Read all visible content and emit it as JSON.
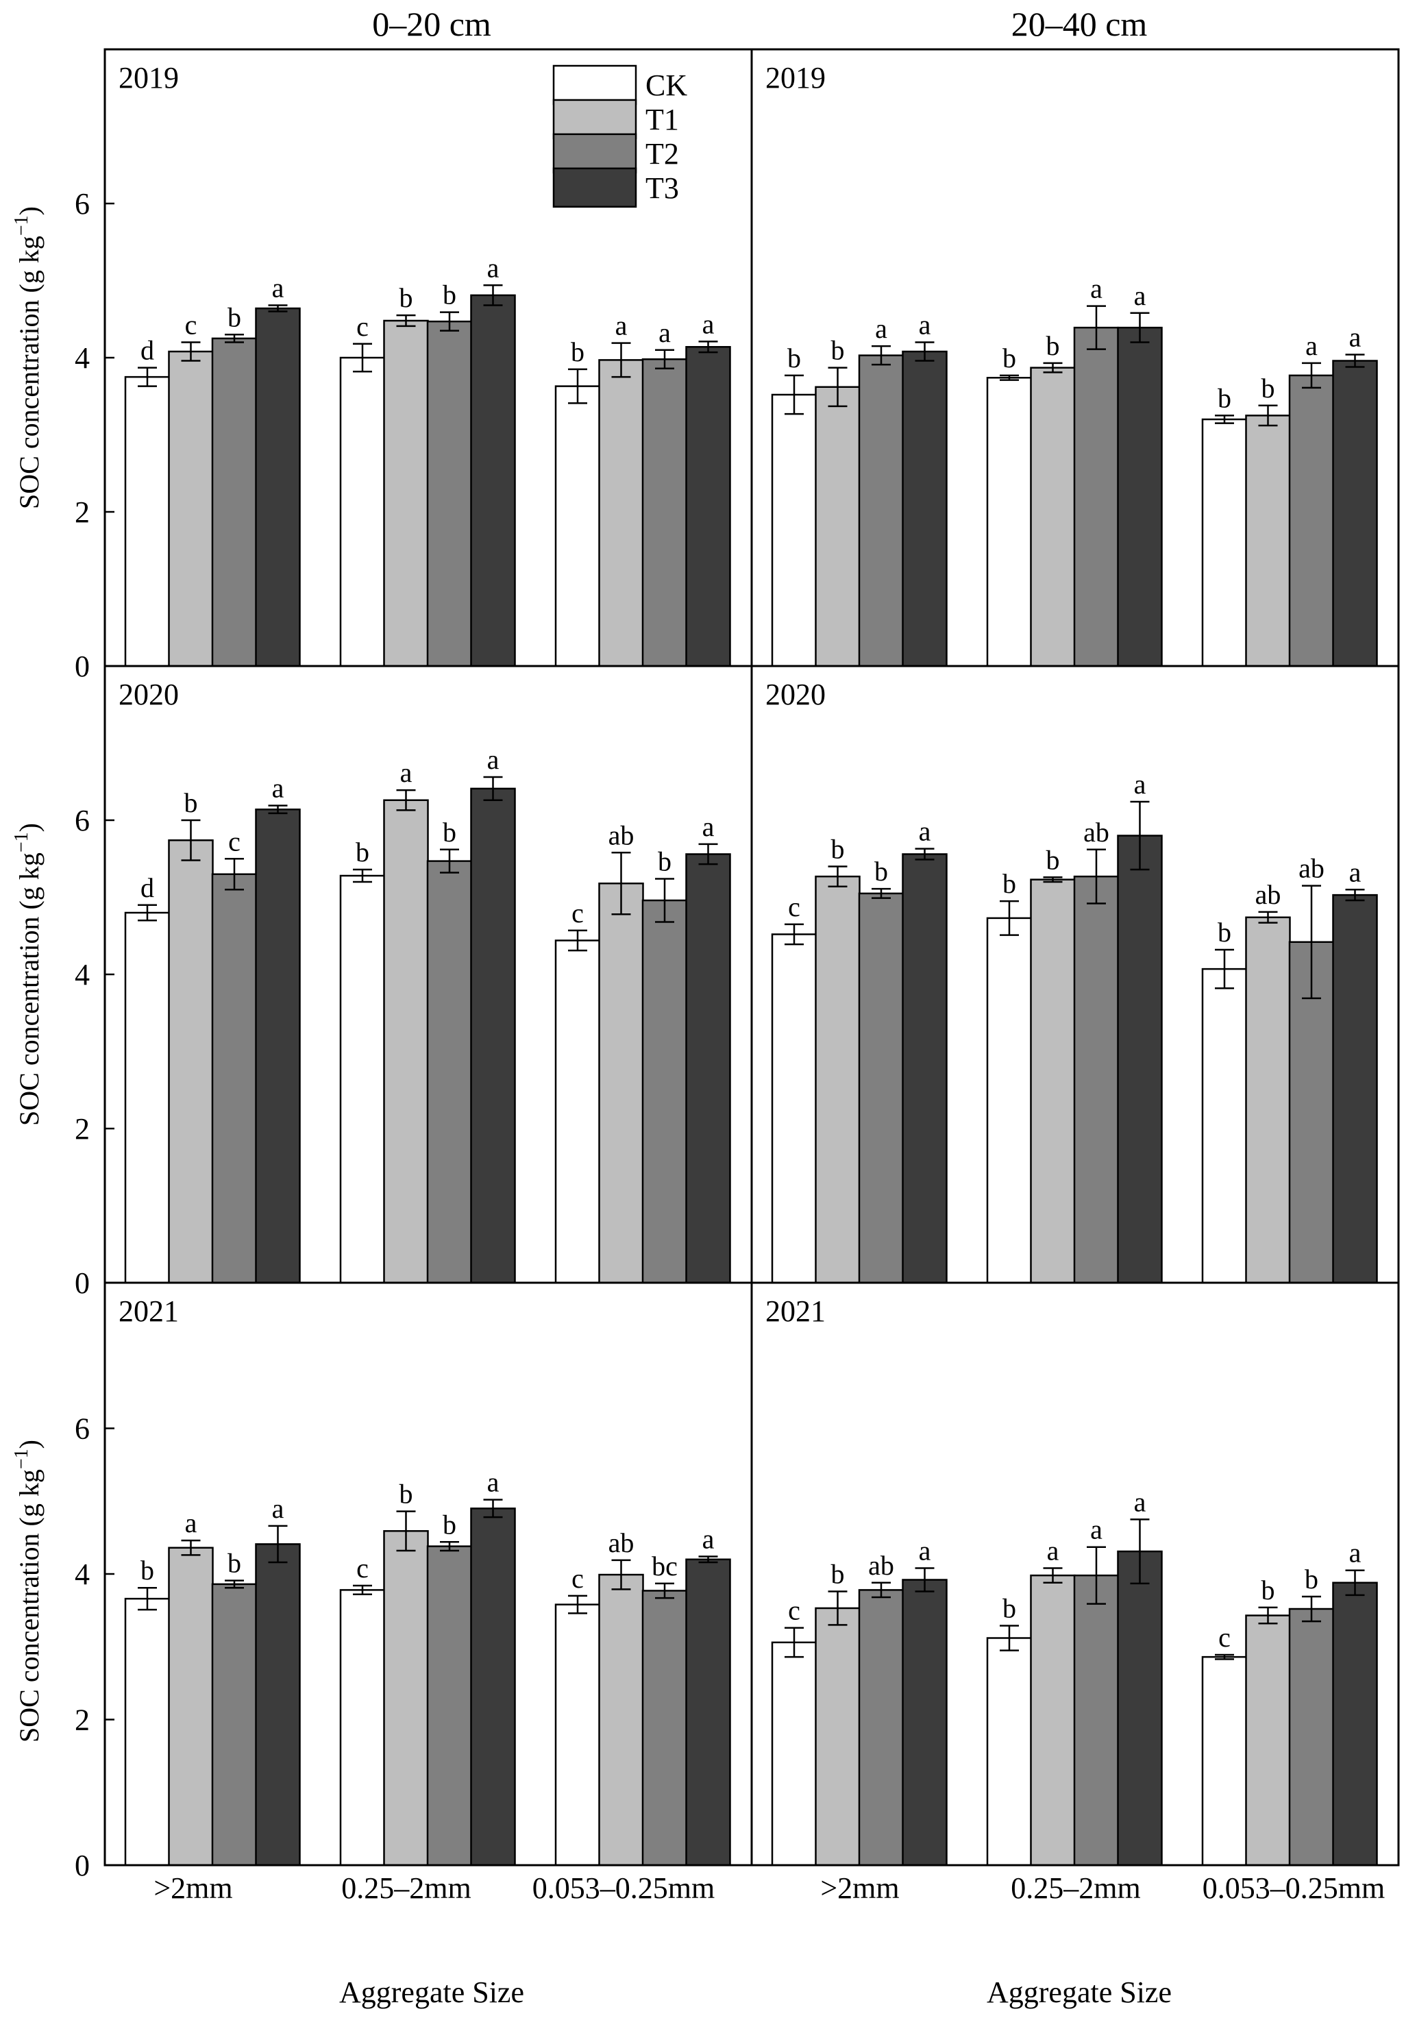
{
  "chart_data": {
    "type": "bar",
    "column_titles": [
      "0–20 cm",
      "20–40 cm"
    ],
    "years": [
      "2019",
      "2020",
      "2021"
    ],
    "categories": [
      ">2mm",
      "0.25–2mm",
      "0.053–0.25mm"
    ],
    "xlabel": "Aggregate Size",
    "ylabel": "SOC concentration (g kg",
    "ylabel_sup": "−1",
    "ylabel_close": ")",
    "ylim": [
      0,
      8
    ],
    "yticks": [
      "0",
      "2",
      "4",
      "6"
    ],
    "legend": {
      "placement": "top-right of left 2019 panel",
      "entries": [
        {
          "name": "CK",
          "color": "#ffffff"
        },
        {
          "name": "T1",
          "color": "#bebebe"
        },
        {
          "name": "T2",
          "color": "#808080"
        },
        {
          "name": "T3",
          "color": "#3c3c3c"
        }
      ]
    },
    "panels": [
      {
        "id": "p-0-20-2019",
        "column": 0,
        "row": 0,
        "year": "2019",
        "values": [
          [
            3.75,
            4.08,
            4.25,
            4.64
          ],
          [
            4.0,
            4.48,
            4.47,
            4.81
          ],
          [
            3.63,
            3.97,
            3.98,
            4.14
          ]
        ],
        "errors": [
          [
            0.12,
            0.12,
            0.05,
            0.04
          ],
          [
            0.18,
            0.07,
            0.12,
            0.13
          ],
          [
            0.22,
            0.22,
            0.12,
            0.07
          ]
        ],
        "letters": [
          [
            "d",
            "c",
            "b",
            "a"
          ],
          [
            "c",
            "b",
            "b",
            "a"
          ],
          [
            "b",
            "a",
            "a",
            "a"
          ]
        ]
      },
      {
        "id": "p-20-40-2019",
        "column": 1,
        "row": 0,
        "year": "2019",
        "values": [
          [
            3.52,
            3.62,
            4.03,
            4.08
          ],
          [
            3.74,
            3.87,
            4.39,
            4.39
          ],
          [
            3.2,
            3.25,
            3.77,
            3.96
          ]
        ],
        "errors": [
          [
            0.25,
            0.25,
            0.12,
            0.12
          ],
          [
            0.03,
            0.06,
            0.28,
            0.19
          ],
          [
            0.05,
            0.13,
            0.16,
            0.08
          ]
        ],
        "letters": [
          [
            "b",
            "b",
            "a",
            "a"
          ],
          [
            "b",
            "b",
            "a",
            "a"
          ],
          [
            "b",
            "b",
            "a",
            "a"
          ]
        ]
      },
      {
        "id": "p-0-20-2020",
        "column": 0,
        "row": 1,
        "year": "2020",
        "values": [
          [
            4.8,
            5.74,
            5.3,
            6.14
          ],
          [
            5.28,
            6.26,
            5.47,
            6.41
          ],
          [
            4.44,
            5.18,
            4.96,
            5.56
          ]
        ],
        "errors": [
          [
            0.1,
            0.26,
            0.2,
            0.05
          ],
          [
            0.08,
            0.13,
            0.15,
            0.15
          ],
          [
            0.13,
            0.4,
            0.28,
            0.13
          ]
        ],
        "letters": [
          [
            "d",
            "b",
            "c",
            "a"
          ],
          [
            "b",
            "a",
            "b",
            "a"
          ],
          [
            "c",
            "ab",
            "b",
            "a"
          ]
        ]
      },
      {
        "id": "p-20-40-2020",
        "column": 1,
        "row": 1,
        "year": "2020",
        "values": [
          [
            4.52,
            5.27,
            5.05,
            5.56
          ],
          [
            4.73,
            5.23,
            5.27,
            5.8
          ],
          [
            4.07,
            4.74,
            4.42,
            5.03
          ]
        ],
        "errors": [
          [
            0.13,
            0.13,
            0.06,
            0.07
          ],
          [
            0.22,
            0.03,
            0.35,
            0.44
          ],
          [
            0.25,
            0.07,
            0.73,
            0.07
          ]
        ],
        "letters": [
          [
            "c",
            "b",
            "b",
            "a"
          ],
          [
            "b",
            "b",
            "ab",
            "a"
          ],
          [
            "b",
            "ab",
            "ab",
            "a"
          ]
        ]
      },
      {
        "id": "p-0-20-2021",
        "column": 0,
        "row": 2,
        "year": "2021",
        "values": [
          [
            3.66,
            4.36,
            3.86,
            4.41
          ],
          [
            3.78,
            4.59,
            4.38,
            4.9
          ],
          [
            3.58,
            3.99,
            3.77,
            4.2
          ]
        ],
        "errors": [
          [
            0.15,
            0.1,
            0.05,
            0.25
          ],
          [
            0.06,
            0.27,
            0.06,
            0.12
          ],
          [
            0.12,
            0.2,
            0.1,
            0.04
          ]
        ],
        "letters": [
          [
            "b",
            "a",
            "b",
            "a"
          ],
          [
            "c",
            "b",
            "b",
            "a"
          ],
          [
            "c",
            "ab",
            "bc",
            "a"
          ]
        ]
      },
      {
        "id": "p-20-40-2021",
        "column": 1,
        "row": 2,
        "year": "2021",
        "values": [
          [
            3.06,
            3.53,
            3.78,
            3.92
          ],
          [
            3.12,
            3.98,
            3.98,
            4.31
          ],
          [
            2.86,
            3.43,
            3.52,
            3.88
          ]
        ],
        "errors": [
          [
            0.2,
            0.23,
            0.1,
            0.16
          ],
          [
            0.17,
            0.1,
            0.39,
            0.44
          ],
          [
            0.03,
            0.11,
            0.17,
            0.17
          ]
        ],
        "letters": [
          [
            "c",
            "b",
            "ab",
            "a"
          ],
          [
            "b",
            "a",
            "a",
            "a"
          ],
          [
            "c",
            "b",
            "b",
            "a"
          ]
        ]
      }
    ]
  }
}
